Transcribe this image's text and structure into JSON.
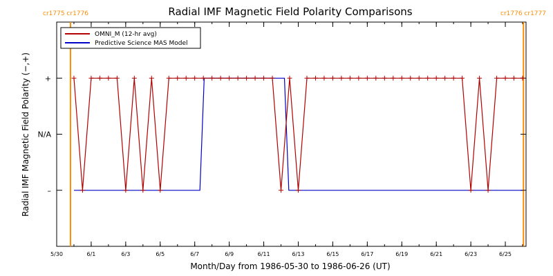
{
  "chart_data": {
    "type": "line",
    "title": "Radial IMF Magnetic Field Polarity Comparisons",
    "xlabel": "Month/Day from 1986-05-30 to 1986-06-26 (UT)",
    "ylabel": "Radial IMF Magnetic Field Polarity (−,+)",
    "xlim": [
      0,
      27.2
    ],
    "ylim": [
      -2,
      2
    ],
    "x_ticks": [
      {
        "x": 0,
        "label": "5/30"
      },
      {
        "x": 2,
        "label": "6/1"
      },
      {
        "x": 4,
        "label": "6/3"
      },
      {
        "x": 6,
        "label": "6/5"
      },
      {
        "x": 8,
        "label": "6/7"
      },
      {
        "x": 10,
        "label": "6/9"
      },
      {
        "x": 12,
        "label": "6/11"
      },
      {
        "x": 14,
        "label": "6/13"
      },
      {
        "x": 16,
        "label": "6/15"
      },
      {
        "x": 18,
        "label": "6/17"
      },
      {
        "x": 20,
        "label": "6/19"
      },
      {
        "x": 22,
        "label": "6/21"
      },
      {
        "x": 24,
        "label": "6/23"
      },
      {
        "x": 26,
        "label": "6/25"
      }
    ],
    "y_ticks": [
      {
        "y": 1,
        "label": "+"
      },
      {
        "y": 0,
        "label": "N/A"
      },
      {
        "y": -1,
        "label": "–"
      }
    ],
    "cr_markers": [
      {
        "x": 0.8,
        "labels": [
          "cr1775",
          "cr1776"
        ]
      },
      {
        "x": 27.05,
        "labels": [
          "cr1776",
          "cr1777"
        ]
      }
    ],
    "series": [
      {
        "name": "OMNI_M (12-hr avg)",
        "color": "#b00000",
        "markers": true,
        "x": [
          1.0,
          1.5,
          2.0,
          2.5,
          3.0,
          3.5,
          4.0,
          4.5,
          5.0,
          5.5,
          6.0,
          6.5,
          7.0,
          7.5,
          8.0,
          8.5,
          9.0,
          9.5,
          10.0,
          10.5,
          11.0,
          11.5,
          12.0,
          12.5,
          13.0,
          13.5,
          14.0,
          14.5,
          15.0,
          15.5,
          16.0,
          16.5,
          17.0,
          17.5,
          18.0,
          18.5,
          19.0,
          19.5,
          20.0,
          20.5,
          21.0,
          21.5,
          22.0,
          22.5,
          23.0,
          23.5,
          24.0,
          24.5,
          25.0,
          25.5,
          26.0,
          26.5,
          27.0
        ],
        "y": [
          1,
          -1,
          1,
          1,
          1,
          1,
          -1,
          1,
          -1,
          1,
          -1,
          1,
          1,
          1,
          1,
          1,
          1,
          1,
          1,
          1,
          1,
          1,
          1,
          1,
          -1,
          1,
          -1,
          1,
          1,
          1,
          1,
          1,
          1,
          1,
          1,
          1,
          1,
          1,
          1,
          1,
          1,
          1,
          1,
          1,
          1,
          1,
          -1,
          1,
          -1,
          1,
          1,
          1,
          1
        ]
      },
      {
        "name": "Predictive Science MAS Model",
        "color": "#0000c8",
        "markers": false,
        "x": [
          1.0,
          8.3,
          8.55,
          13.2,
          13.45,
          27.0
        ],
        "y": [
          -1,
          -1,
          1,
          1,
          -1,
          -1
        ]
      }
    ],
    "legend": "top-left",
    "grid": false
  }
}
